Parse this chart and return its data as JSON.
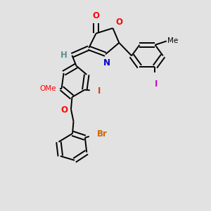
{
  "bg_color": "#e2e2e2",
  "bond_color": "#000000",
  "bond_width": 1.4,
  "figsize": [
    3.0,
    3.0
  ],
  "dpi": 100,
  "labels": {
    "O_carbonyl": {
      "text": "O",
      "color": "#ff0000",
      "fontsize": 8.5
    },
    "O_ring": {
      "text": "O",
      "color": "#ff0000",
      "fontsize": 8.5
    },
    "N_ring": {
      "text": "N",
      "color": "#0000cd",
      "fontsize": 8.5
    },
    "H_vinyl": {
      "text": "H",
      "color": "#5a9090",
      "fontsize": 8.5
    },
    "I_right": {
      "text": "I",
      "color": "#cc00cc",
      "fontsize": 8.5
    },
    "Me_right": {
      "text": "",
      "color": "#000000",
      "fontsize": 7.5
    },
    "OMe_left": {
      "text": "OMe",
      "color": "#ff0000",
      "fontsize": 7.5
    },
    "O_benzyloxy": {
      "text": "O",
      "color": "#ff0000",
      "fontsize": 8.5
    },
    "I_left": {
      "text": "I",
      "color": "#cc4400",
      "fontsize": 8.5
    },
    "Br_label": {
      "text": "Br",
      "color": "#cc6600",
      "fontsize": 8.5
    }
  }
}
